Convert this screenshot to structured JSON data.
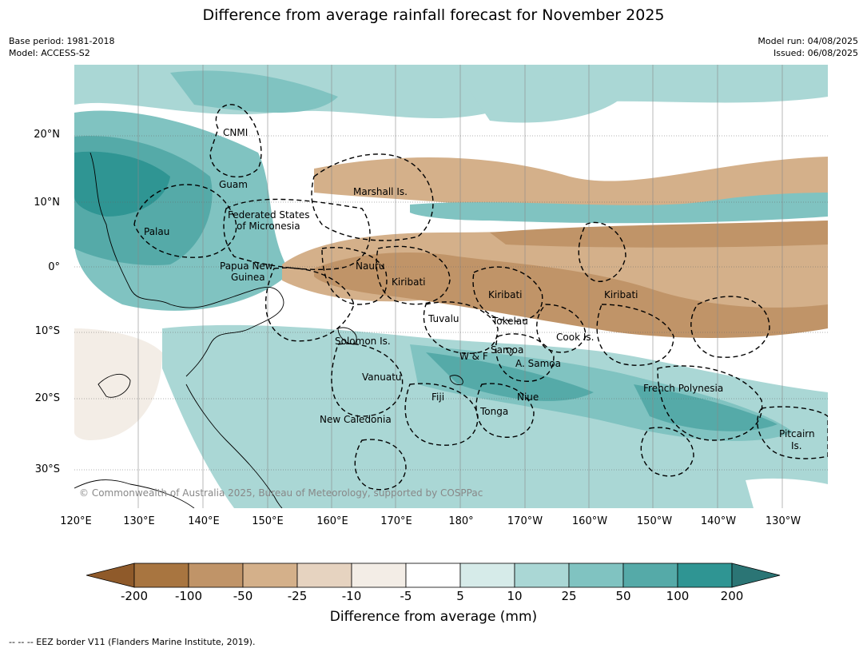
{
  "title": "Difference from average rainfall forecast for November 2025",
  "meta_left": {
    "base_period": "Base period: 1981-2018",
    "model": "Model: ACCESS-S2"
  },
  "meta_right": {
    "model_run": "Model run: 04/08/2025",
    "issued": "Issued: 06/08/2025"
  },
  "map": {
    "lat_labels": [
      "20°N",
      "10°N",
      "0°",
      "10°S",
      "20°S",
      "30°S"
    ],
    "lon_labels": [
      "120°E",
      "130°E",
      "140°E",
      "150°E",
      "160°E",
      "170°E",
      "180°",
      "170°W",
      "160°W",
      "150°W",
      "140°W",
      "130°W"
    ],
    "region_labels": {
      "cnmi": "CNMI",
      "guam": "Guam",
      "marshall": "Marshall Is.",
      "fsm_1": "Federated States",
      "fsm_2": "of Micronesia",
      "palau": "Palau",
      "png_1": "Papua New",
      "png_2": "Guinea",
      "nauru": "Nauru",
      "kiribati_w": "Kiribati",
      "kiribati_c": "Kiribati",
      "kiribati_e": "Kiribati",
      "tuvalu": "Tuvalu",
      "tokelau": "Tokelau",
      "cook": "Cook Is.",
      "solomon": "Solomon Is.",
      "wf": "W & F",
      "samoa": "Samoa",
      "asamoa": "A. Samoa",
      "vanuatu": "Vanuatu",
      "fiji": "Fiji",
      "niue": "Niue",
      "tonga": "Tonga",
      "newcal": "New Caledonia",
      "frenchpoly": "French Polynesia",
      "pitcairn_1": "Pitcairn",
      "pitcairn_2": "Is."
    },
    "copyright": "© Commonwealth of Australia 2025, Bureau of Meteorology, supported by COSPPac"
  },
  "legend": {
    "ticks": [
      "-200",
      "-100",
      "-50",
      "-25",
      "-10",
      "-5",
      "5",
      "10",
      "25",
      "50",
      "100",
      "200"
    ],
    "colors": [
      "#8f5a2a",
      "#a87540",
      "#c09468",
      "#d4b08a",
      "#e6d3c0",
      "#f3ede6",
      "#ffffff",
      "#d6ebe9",
      "#aad7d5",
      "#80c3c1",
      "#55aaa8",
      "#2f9593",
      "#2b7575"
    ],
    "title": "Difference from average (mm)"
  },
  "footnote": "--  --  -- EEZ border V11 (Flanders Marine Institute, 2019)."
}
